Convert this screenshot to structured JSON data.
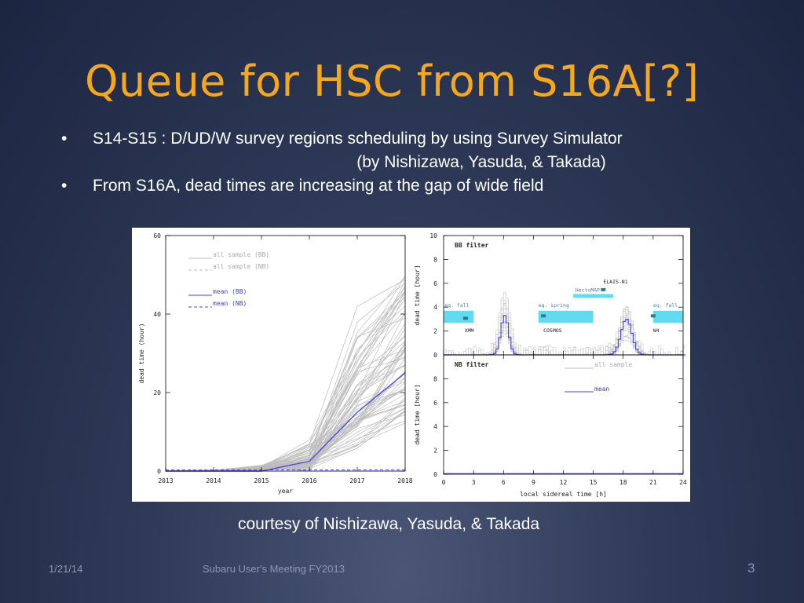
{
  "slide": {
    "title": "Queue for HSC from S16A[?]",
    "bullets": [
      {
        "marker": "•",
        "line1": "S14-S15 : D/UD/W survey regions scheduling by using Survey Simulator",
        "line2": "(by Nishizawa, Yasuda, & Takada)"
      },
      {
        "marker": "•",
        "line1": "From S16A, dead times are increasing at the gap of wide field"
      }
    ],
    "caption": "courtesy of Nishizawa, Yasuda, & Takada",
    "footer": {
      "date": "1/21/14",
      "event": "Subaru User's Meeting FY2013",
      "page": "3"
    }
  },
  "chart_data": [
    {
      "type": "line",
      "xlabel": "year",
      "ylabel": "dead time (hour)",
      "xlim": [
        2013,
        2018
      ],
      "ylim": [
        0,
        60
      ],
      "xticks": [
        "2013",
        "2014",
        "2015",
        "2016",
        "2017",
        "2018"
      ],
      "yticks": [
        "0",
        "20",
        "40",
        "60"
      ],
      "legend": [
        "all sample (BB)",
        "all sample (NB)",
        "mean (BB)",
        "mean (NB)"
      ],
      "legend_position": "top-left",
      "colors": {
        "sample": "#bdbdbd",
        "mean": "#4a4ae0"
      },
      "x": [
        2013,
        2014,
        2015,
        2016,
        2017,
        2018
      ],
      "series": [
        {
          "name": "mean (BB)",
          "values": [
            0,
            0,
            0,
            2.5,
            15,
            25
          ]
        },
        {
          "name": "mean (NB)",
          "values": [
            0,
            0,
            0,
            0,
            0,
            0
          ]
        }
      ]
    },
    {
      "type": "line",
      "panel_label": "BB filter",
      "xlim": [
        0,
        24
      ],
      "ylim": [
        0,
        10
      ],
      "yticks": [
        "0",
        "2",
        "4",
        "6",
        "8",
        "10"
      ],
      "ylabel": "dead time [hour]",
      "regions": [
        {
          "label": "eq. fall",
          "from": 0,
          "to": 3,
          "y": 2.6
        },
        {
          "label": "XMM",
          "at": 2.2,
          "y": 2.2
        },
        {
          "label": "eq. spring",
          "from": 9.5,
          "to": 15,
          "y": 2.6
        },
        {
          "label": "COSMOS",
          "at": 10,
          "y": 2.2
        },
        {
          "label": "HectoMAP",
          "from": 13,
          "to": 17,
          "y": 3.6
        },
        {
          "label": "ELAIS-N1",
          "at": 16,
          "y": 4.2
        },
        {
          "label": "eq. fall",
          "from": 21,
          "to": 24,
          "y": 2.6
        },
        {
          "label": "W4",
          "at": 21,
          "y": 2.2
        }
      ],
      "x": [
        0,
        1,
        2,
        3,
        4,
        5,
        5.5,
        6,
        6.5,
        7,
        8,
        9,
        10,
        11,
        12,
        13,
        14,
        15,
        16,
        17,
        17.5,
        18,
        18.5,
        19,
        20,
        21,
        22,
        23,
        24
      ],
      "series": [
        {
          "name": "mean",
          "values": [
            0,
            0,
            0,
            0,
            0.1,
            0.6,
            1.5,
            3.3,
            1.5,
            0.5,
            0.1,
            0,
            0,
            0,
            0,
            0,
            0.1,
            0.2,
            0.6,
            1.5,
            2.2,
            3.0,
            2.2,
            1.0,
            0.3,
            0,
            0,
            0,
            0
          ]
        }
      ]
    },
    {
      "type": "line",
      "panel_label": "NB filter",
      "xlabel": "local sidereal time [h]",
      "xlim": [
        0,
        24
      ],
      "ylim": [
        0,
        10
      ],
      "xticks": [
        "0",
        "3",
        "6",
        "9",
        "12",
        "15",
        "18",
        "21",
        "24"
      ],
      "yticks": [
        "0",
        "2",
        "4",
        "6",
        "8"
      ],
      "ylabel": "dead time [hour]",
      "legend": [
        "all sample",
        "mean"
      ],
      "x": [
        0,
        24
      ],
      "series": [
        {
          "name": "mean",
          "values": [
            0,
            0
          ]
        }
      ]
    }
  ]
}
